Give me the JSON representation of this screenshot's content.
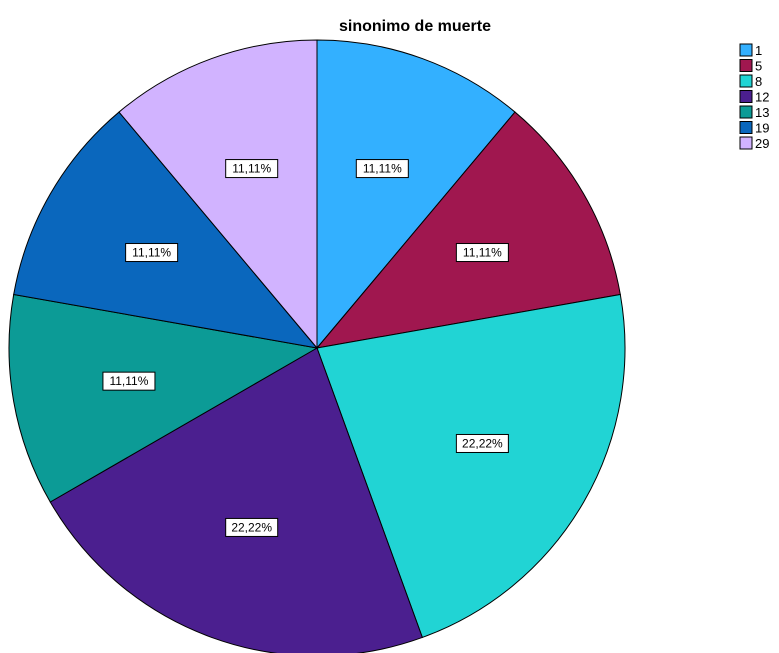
{
  "chart_data": {
    "type": "pie",
    "title": "sinonimo de muerte",
    "categories": [
      "1",
      "5",
      "8",
      "12",
      "13",
      "19",
      "29"
    ],
    "values": [
      11.11,
      11.11,
      22.22,
      22.22,
      11.11,
      11.11,
      11.11
    ],
    "data_labels": [
      "11,11%",
      "11,11%",
      "22,22%",
      "22,22%",
      "11,11%",
      "11,11%",
      "11,11%"
    ],
    "colors": [
      "#33b0ff",
      "#a0174f",
      "#21d4d4",
      "#4b1f8f",
      "#0c9b96",
      "#0a67bd",
      "#d1b3ff"
    ],
    "start": "12 o'clock",
    "direction": "clockwise",
    "legend_position": "right"
  }
}
